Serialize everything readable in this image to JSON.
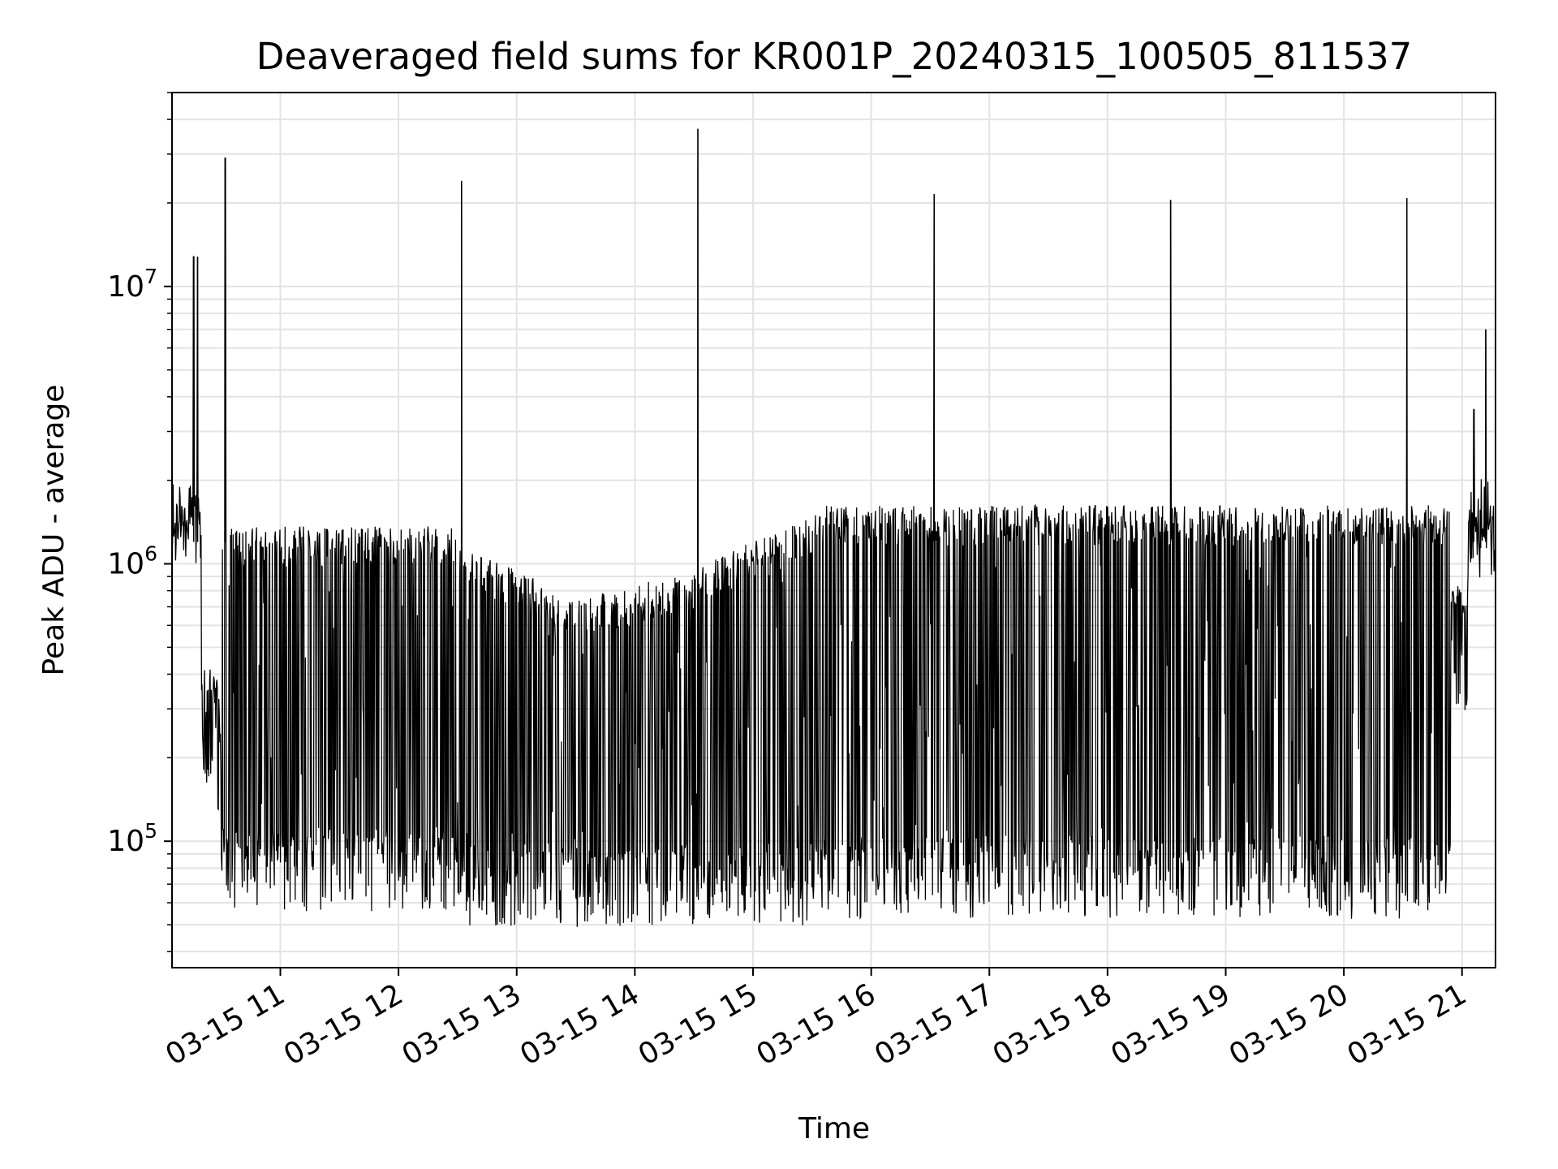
{
  "chart_data": {
    "type": "line",
    "title": "Deaveraged field sums for KR001P_20240315_100505_811537",
    "xlabel": "Time",
    "ylabel": "Peak ADU - average",
    "yscale": "log",
    "ylim": [
      35000,
      50000000
    ],
    "xlim": [
      "2024-03-15 10:05",
      "2024-03-15 21:17"
    ],
    "grid": true,
    "line_color": "#000000",
    "x_ticks": [
      "03-15 11",
      "03-15 12",
      "03-15 13",
      "03-15 14",
      "03-15 15",
      "03-15 16",
      "03-15 17",
      "03-15 18",
      "03-15 19",
      "03-15 20",
      "03-15 21"
    ],
    "y_ticks": [
      {
        "base": "10",
        "exp": "5",
        "value": 100000
      },
      {
        "base": "10",
        "exp": "6",
        "value": 1000000
      },
      {
        "base": "10",
        "exp": "7",
        "value": 10000000
      }
    ],
    "series": [
      {
        "note_points": "approximate envelope of a dense signal: [time, value]",
        "points": [
          [
            "2024-03-15 10:05",
            1500000
          ],
          [
            "2024-03-15 10:08",
            2200000
          ],
          [
            "2024-03-15 10:12",
            1300000
          ],
          [
            "2024-03-15 10:16",
            12800000
          ],
          [
            "2024-03-15 10:17",
            1400000
          ],
          [
            "2024-03-15 10:18",
            12800000
          ],
          [
            "2024-03-15 10:20",
            300000
          ],
          [
            "2024-03-15 10:27",
            120000
          ],
          [
            "2024-03-15 10:32",
            29000000
          ],
          [
            "2024-03-15 10:33",
            80000
          ],
          [
            "2024-03-15 10:45",
            1200000
          ],
          [
            "2024-03-15 11:00",
            60000
          ],
          [
            "2024-03-15 11:30",
            1400000
          ],
          [
            "2024-03-15 12:05",
            55000
          ],
          [
            "2024-03-15 12:33",
            24000000
          ],
          [
            "2024-03-15 13:00",
            70000
          ],
          [
            "2024-03-15 13:30",
            900000
          ],
          [
            "2024-03-15 14:05",
            50000
          ],
          [
            "2024-03-15 14:33",
            37000000
          ],
          [
            "2024-03-15 15:00",
            55000
          ],
          [
            "2024-03-15 15:30",
            1400000
          ],
          [
            "2024-03-15 16:00",
            60000
          ],
          [
            "2024-03-15 16:33",
            21500000
          ],
          [
            "2024-03-15 17:00",
            60000
          ],
          [
            "2024-03-15 17:30",
            1700000
          ],
          [
            "2024-03-15 18:00",
            60000
          ],
          [
            "2024-03-15 18:33",
            20500000
          ],
          [
            "2024-03-15 19:00",
            60000
          ],
          [
            "2024-03-15 19:30",
            1600000
          ],
          [
            "2024-03-15 20:00",
            55000
          ],
          [
            "2024-03-15 20:33",
            20800000
          ],
          [
            "2024-03-15 20:45",
            60000
          ],
          [
            "2024-03-15 21:00",
            1300000
          ],
          [
            "2024-03-15 21:06",
            3600000
          ],
          [
            "2024-03-15 21:12",
            7000000
          ],
          [
            "2024-03-15 21:17",
            1200000
          ]
        ]
      }
    ]
  }
}
